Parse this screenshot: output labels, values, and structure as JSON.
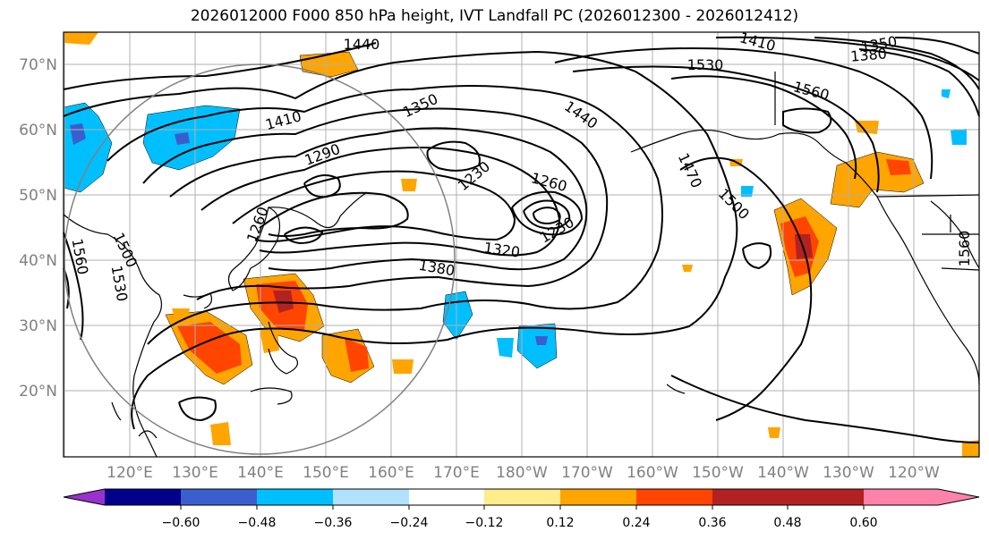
{
  "title": "2026012000 F000 850 hPa height, IVT Landfall PC (2026012300 - 2026012412)",
  "lat_labels": [
    "70°N",
    "60°N",
    "50°N",
    "40°N",
    "30°N",
    "20°N"
  ],
  "lon_labels": [
    "120°E",
    "130°E",
    "140°E",
    "150°E",
    "160°E",
    "170°E",
    "180°W",
    "170°W",
    "160°W",
    "150°W",
    "140°W",
    "130°W",
    "120°W"
  ],
  "contour_labels": [
    "1440",
    "1410",
    "1350",
    "1290",
    "1230",
    "1260",
    "1230",
    "1320",
    "1380",
    "1260",
    "1410",
    "1350",
    "1380",
    "1530",
    "1560",
    "1440",
    "1470",
    "1500",
    "1500",
    "1530",
    "1560",
    "1560"
  ],
  "colorbar": {
    "ticks": [
      "−0.60",
      "−0.48",
      "−0.36",
      "−0.24",
      "−0.12",
      "0.12",
      "0.24",
      "0.36",
      "0.48",
      "0.60"
    ],
    "colors": [
      "#9932CC",
      "#00008B",
      "#3A5FCD",
      "#00BFFF",
      "#B0E2FF",
      "#FFFFFF",
      "#FFEC8B",
      "#FFA500",
      "#FF4500",
      "#B22222",
      "#FF82AB"
    ]
  }
}
